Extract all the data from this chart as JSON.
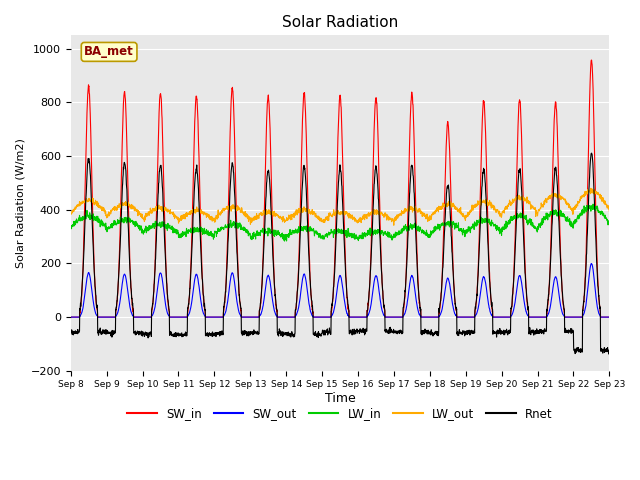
{
  "title": "Solar Radiation",
  "ylabel": "Solar Radiation (W/m2)",
  "xlabel": "Time",
  "legend_label": "BA_met",
  "ylim": [
    -200,
    1050
  ],
  "yticks": [
    -200,
    0,
    200,
    400,
    600,
    800,
    1000
  ],
  "background_color": "#e8e8e8",
  "fig_background": "#ffffff",
  "series_colors": {
    "SW_in": "#ff0000",
    "SW_out": "#0000ff",
    "LW_in": "#00cc00",
    "LW_out": "#ffaa00",
    "Rnet": "#000000"
  },
  "n_days": 15,
  "start_day": 8,
  "SW_in_peak": [
    860,
    840,
    835,
    825,
    855,
    820,
    835,
    825,
    820,
    835,
    725,
    805,
    810,
    800,
    960
  ],
  "SW_out_peak": [
    165,
    160,
    165,
    160,
    165,
    155,
    160,
    155,
    155,
    155,
    145,
    150,
    155,
    150,
    200
  ],
  "LW_in_base": [
    335,
    325,
    315,
    300,
    310,
    295,
    300,
    295,
    295,
    300,
    310,
    315,
    325,
    335,
    350
  ],
  "LW_in_day_boost": [
    40,
    35,
    30,
    25,
    35,
    25,
    30,
    25,
    25,
    35,
    40,
    45,
    50,
    55,
    60
  ],
  "LW_out_base": [
    385,
    375,
    365,
    360,
    365,
    355,
    360,
    355,
    355,
    360,
    370,
    375,
    385,
    390,
    400
  ],
  "LW_out_day_boost": [
    50,
    45,
    40,
    35,
    45,
    35,
    40,
    35,
    35,
    45,
    50,
    55,
    60,
    65,
    70
  ],
  "Rnet_peak": [
    590,
    575,
    565,
    555,
    575,
    550,
    560,
    555,
    560,
    565,
    490,
    550,
    550,
    555,
    610
  ],
  "Rnet_night": [
    -70,
    -75,
    -80,
    -80,
    -75,
    -75,
    -80,
    -70,
    -65,
    -70,
    -75,
    -70,
    -70,
    -65,
    -155
  ]
}
